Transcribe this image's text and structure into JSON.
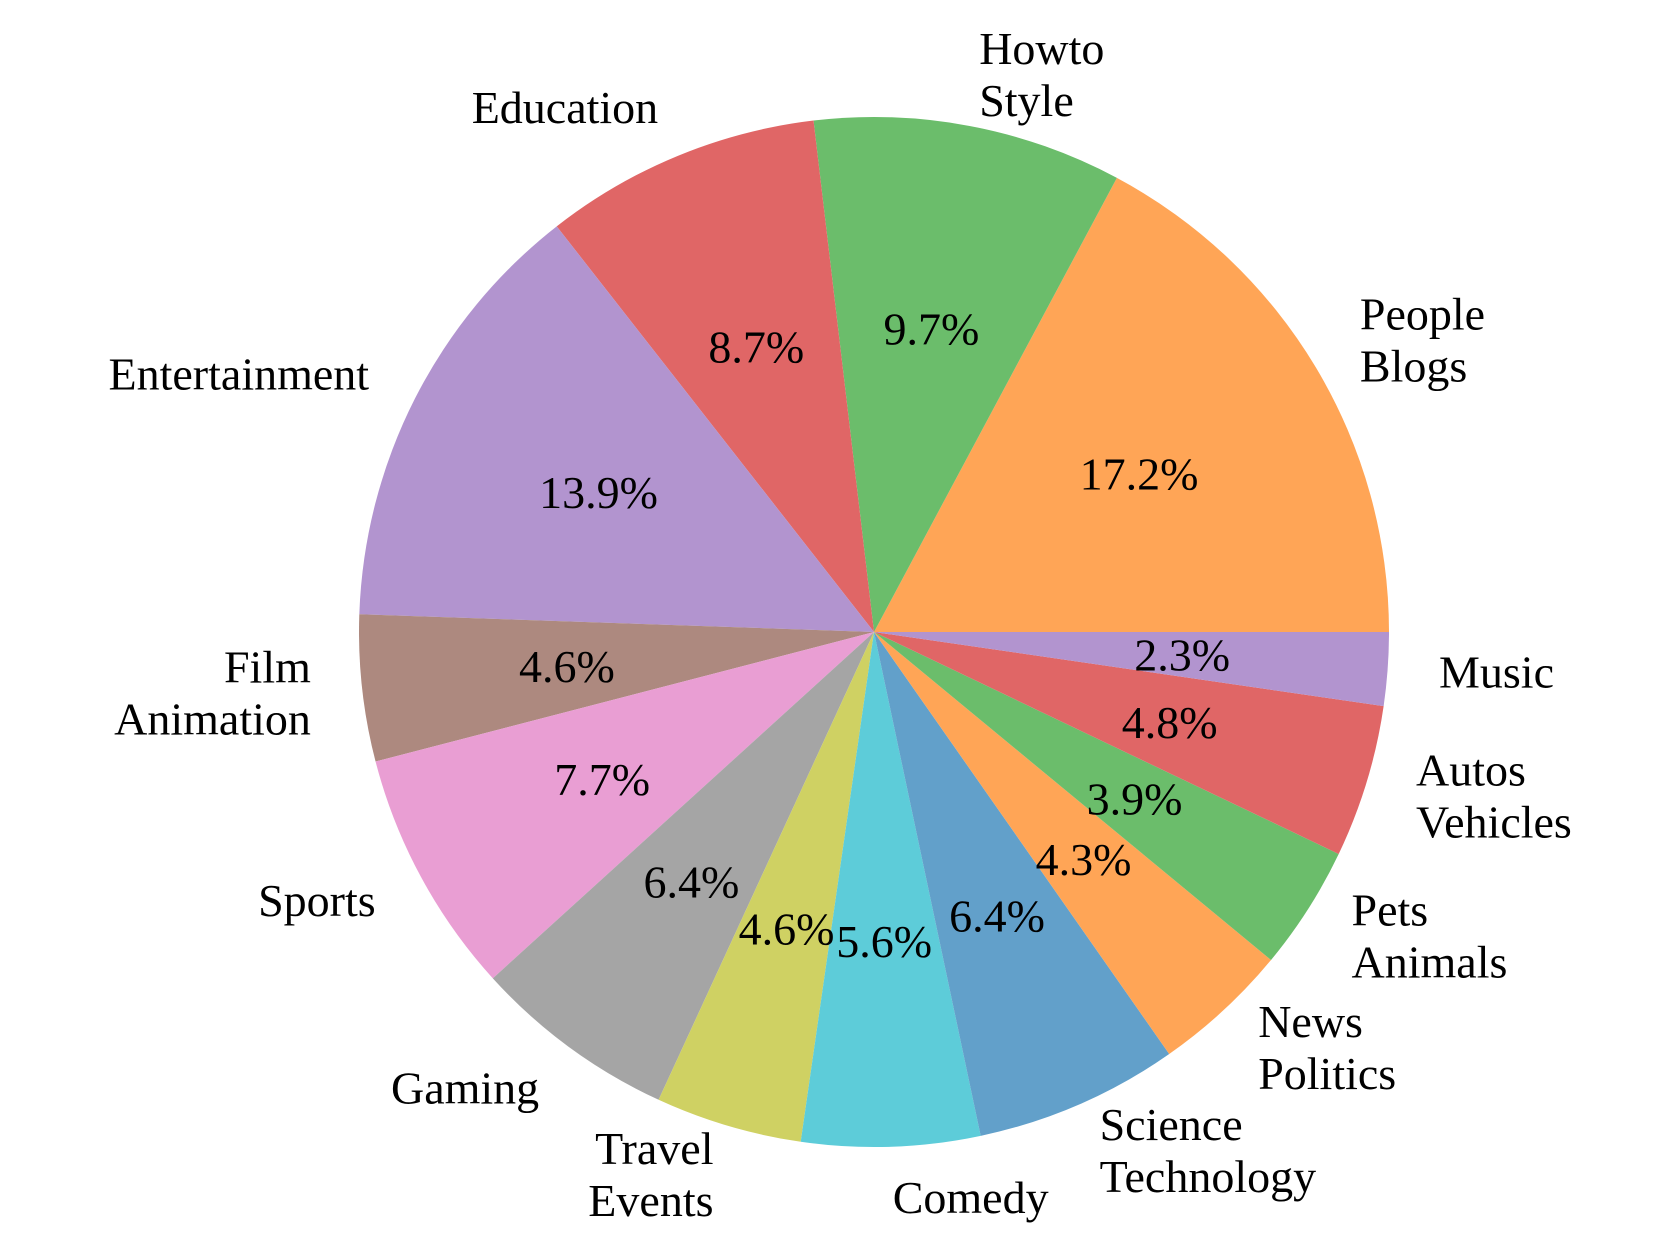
{
  "chart_data": {
    "type": "pie",
    "title": "",
    "start_angle_deg": 0,
    "direction": "counterclockwise",
    "slices": [
      {
        "label": [
          "People",
          "Blogs"
        ],
        "value": 17.2,
        "pct_text": "17.2%",
        "color": "#ffa556"
      },
      {
        "label": [
          "Howto",
          "Style"
        ],
        "value": 9.7,
        "pct_text": "9.7%",
        "color": "#6bbd6b"
      },
      {
        "label": [
          "Education"
        ],
        "value": 8.7,
        "pct_text": "8.7%",
        "color": "#e06666"
      },
      {
        "label": [
          "Entertainment"
        ],
        "value": 13.9,
        "pct_text": "13.9%",
        "color": "#b294cf"
      },
      {
        "label": [
          "Film",
          "Animation"
        ],
        "value": 4.6,
        "pct_text": "4.6%",
        "color": "#ad897f"
      },
      {
        "label": [
          "Sports"
        ],
        "value": 7.7,
        "pct_text": "7.7%",
        "color": "#e99ed3"
      },
      {
        "label": [
          "Gaming"
        ],
        "value": 6.4,
        "pct_text": "6.4%",
        "color": "#a5a5a5"
      },
      {
        "label": [
          "Travel",
          "Events"
        ],
        "value": 4.6,
        "pct_text": "4.6%",
        "color": "#cfd163"
      },
      {
        "label": [
          "Comedy"
        ],
        "value": 5.6,
        "pct_text": "5.6%",
        "color": "#5dccd9"
      },
      {
        "label": [
          "Science",
          "Technology"
        ],
        "value": 6.4,
        "pct_text": "6.4%",
        "color": "#62a0ca"
      },
      {
        "label": [
          "News",
          "Politics"
        ],
        "value": 4.3,
        "pct_text": "4.3%",
        "color": "#ffa556"
      },
      {
        "label": [
          "Pets",
          "Animals"
        ],
        "value": 3.9,
        "pct_text": "3.9%",
        "color": "#6bbd6b"
      },
      {
        "label": [
          "Autos",
          "Vehicles"
        ],
        "value": 4.8,
        "pct_text": "4.8%",
        "color": "#e06666"
      },
      {
        "label": [
          "Music"
        ],
        "value": 2.3,
        "pct_text": "2.3%",
        "color": "#b294cf"
      }
    ]
  }
}
